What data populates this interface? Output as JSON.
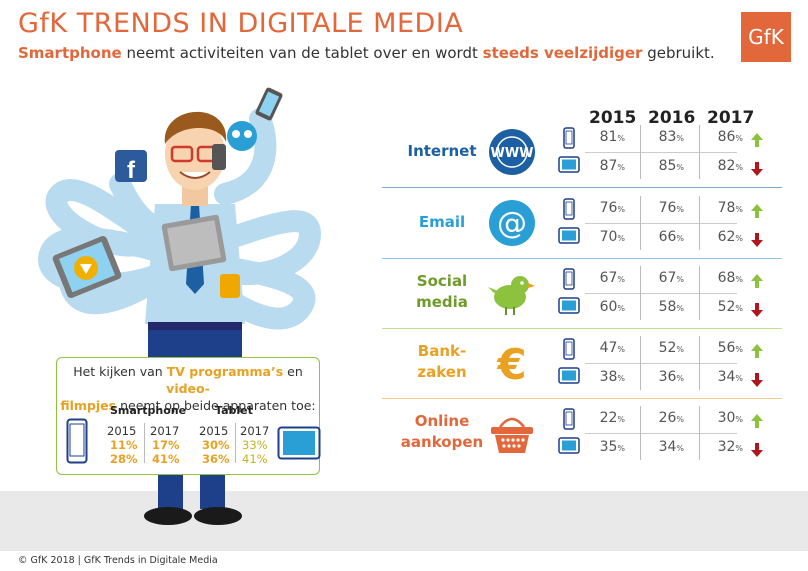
{
  "header": {
    "title": "GfK TRENDS IN DIGITALE MEDIA",
    "subtitle_parts": [
      "Smartphone",
      " neemt activiteiten van de tablet over en wordt ",
      "steeds veelzijdiger",
      " gebruikt."
    ],
    "logo": "GfK"
  },
  "years": [
    "2015",
    "2016",
    "2017"
  ],
  "colors": {
    "orange": "#e2673a",
    "blue": "#1c5fa3",
    "teal": "#2a9fd6",
    "green": "#8fc23f",
    "gold": "#e8a121",
    "up": "#8dc23f",
    "down": "#b3151d"
  },
  "rows": [
    {
      "label": [
        "Internet"
      ],
      "color": "#1c5fa3",
      "icon": "www-globe-icon",
      "smartphone": [
        "81",
        "83",
        "86"
      ],
      "tablet": [
        "87",
        "85",
        "82"
      ]
    },
    {
      "label": [
        "Email"
      ],
      "color": "#2a9fd6",
      "icon": "at-sign-icon",
      "smartphone": [
        "76",
        "76",
        "78"
      ],
      "tablet": [
        "70",
        "66",
        "62"
      ]
    },
    {
      "label": [
        "Social",
        "media"
      ],
      "color": "#6e9b2a",
      "icon": "bird-icon",
      "smartphone": [
        "67",
        "67",
        "68"
      ],
      "tablet": [
        "60",
        "58",
        "52"
      ]
    },
    {
      "label": [
        "Bank-",
        "zaken"
      ],
      "color": "#e8a121",
      "icon": "euro-icon",
      "smartphone": [
        "47",
        "52",
        "56"
      ],
      "tablet": [
        "38",
        "36",
        "34"
      ]
    },
    {
      "label": [
        "Online",
        "aankopen"
      ],
      "color": "#e2673a",
      "icon": "basket-icon",
      "smartphone": [
        "22",
        "26",
        "30"
      ],
      "tablet": [
        "35",
        "34",
        "32"
      ]
    }
  ],
  "pct": "%",
  "tv": {
    "line1_pre": "Het kijken van ",
    "line1_hl1": "TV programma’s",
    "line1_mid": " en ",
    "line1_hl2": "video-",
    "line2_hl": "filmpjes",
    "line2_post": " neemt op beide apparaten toe:",
    "smartphone_label": "Smartphone",
    "tablet_label": "Tablet",
    "year_a": "2015",
    "year_b": "2017",
    "smartphone_tv": [
      "11%",
      "17%"
    ],
    "smartphone_video": [
      "28%",
      "41%"
    ],
    "tablet_tv": [
      "30%",
      "33%"
    ],
    "tablet_video": [
      "36%",
      "41%"
    ]
  },
  "footer": "© GfK 2018 | GfK Trends in Digitale Media"
}
